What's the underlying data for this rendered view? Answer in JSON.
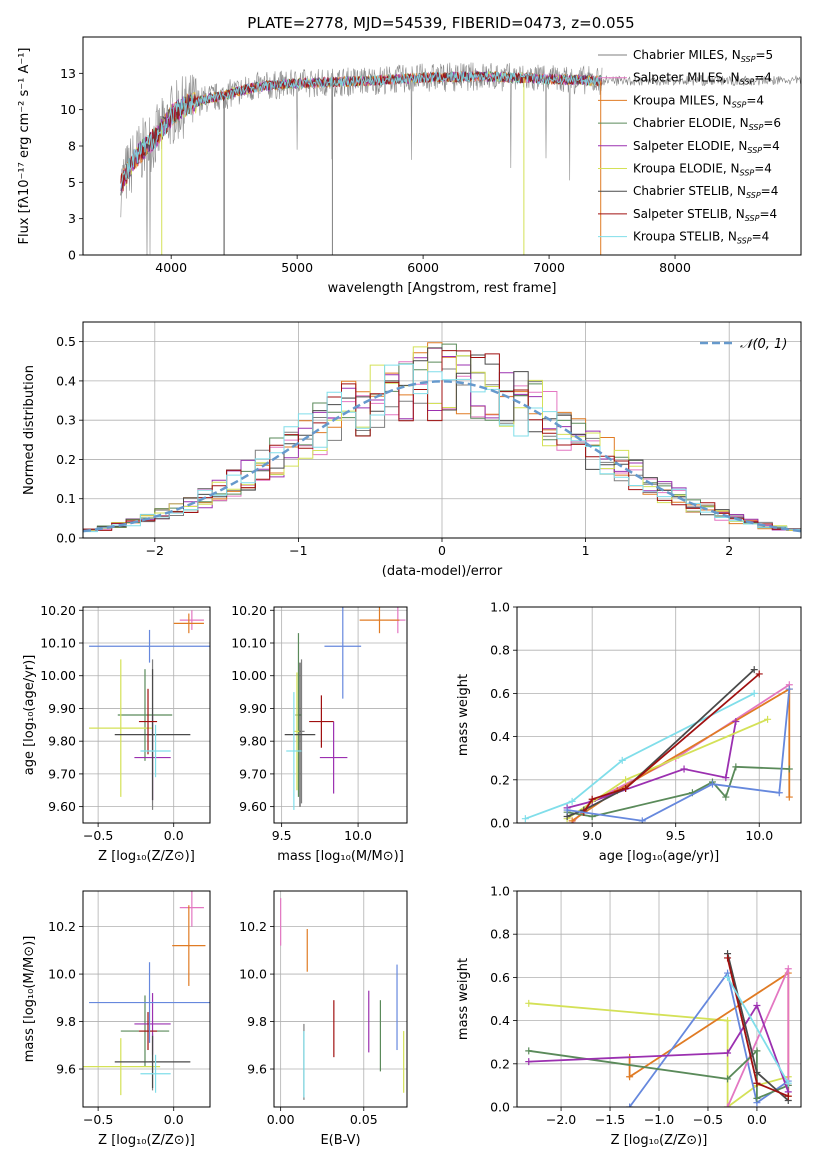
{
  "figure": {
    "title": "PLATE=2778, MJD=54539, FIBERID=0473, z=0.055"
  },
  "legend_entries": [
    {
      "label": "Chabrier MILES, N",
      "sub": "SSP",
      "tail": "=5",
      "color": "#7f7f7f"
    },
    {
      "label": "Salpeter MILES, N",
      "sub": "SSP",
      "tail": "=4",
      "color": "#e377c2"
    },
    {
      "label": "Kroupa MILES, N",
      "sub": "SSP",
      "tail": "=4",
      "color": "#e07b24"
    },
    {
      "label": "Chabrier ELODIE, N",
      "sub": "SSP",
      "tail": "=6",
      "color": "#5a8a5a"
    },
    {
      "label": "Salpeter ELODIE, N",
      "sub": "SSP",
      "tail": "=4",
      "color": "#9b30b0"
    },
    {
      "label": "Kroupa ELODIE, N",
      "sub": "SSP",
      "tail": "=4",
      "color": "#d4e157"
    },
    {
      "label": "Chabrier STELIB, N",
      "sub": "SSP",
      "tail": "=4",
      "color": "#4a4a4a"
    },
    {
      "label": "Salpeter STELIB, N",
      "sub": "SSP",
      "tail": "=4",
      "color": "#a01010"
    },
    {
      "label": "Kroupa STELIB, N",
      "sub": "SSP",
      "tail": "=4",
      "color": "#80deea"
    }
  ],
  "chart_data": [
    {
      "id": "spectrum",
      "type": "line",
      "xlabel": "wavelength [Angstrom, rest frame]",
      "ylabel": "Flux [fλ10⁻¹⁷ erg cm⁻² s⁻¹ A⁻¹]",
      "xlim": [
        3300,
        9000
      ],
      "ylim": [
        0,
        15
      ],
      "xticks": [
        4000,
        5000,
        6000,
        7000,
        8000
      ],
      "yticks": [
        0.0,
        2.5,
        5.0,
        7.5,
        10.0,
        12.5
      ],
      "continuum": {
        "x": [
          3600,
          3700,
          3800,
          3900,
          4000,
          4100,
          4200,
          4300,
          4400,
          4500,
          4700,
          5000,
          5300,
          5600,
          6000,
          6500,
          7000,
          7400
        ],
        "y": [
          4.8,
          6.5,
          7.5,
          8.3,
          9.6,
          10.2,
          10.5,
          10.8,
          10.9,
          11.2,
          11.6,
          11.8,
          11.9,
          12.0,
          12.2,
          12.3,
          12.1,
          12.0
        ]
      }
    },
    {
      "id": "residuals",
      "type": "line",
      "xlabel": "(data-model)/error",
      "ylabel": "Normed distribution",
      "xlim": [
        -2.5,
        2.5
      ],
      "ylim": [
        0,
        0.55
      ],
      "xticks": [
        -2,
        -1,
        0,
        1,
        2
      ],
      "yticks": [
        0.0,
        0.1,
        0.2,
        0.3,
        0.4,
        0.5
      ],
      "legend": "𝒩(0, 1)",
      "legend_position": "top-right",
      "gaussian": {
        "mean": 0,
        "sigma": 1
      },
      "hist_bin_width": 0.1
    },
    {
      "id": "age-vs-Z",
      "type": "scatter",
      "xlabel": "Z [log₁₀(Z/Z⊙)]",
      "ylabel": "age  [log₁₀(age/yr)]",
      "xlim": [
        -0.6,
        0.24
      ],
      "ylim": [
        9.55,
        10.21
      ],
      "xticks": [
        -0.5,
        0.0
      ],
      "yticks": [
        9.6,
        9.7,
        9.8,
        9.9,
        10.0,
        10.1,
        10.2
      ],
      "points": [
        {
          "x": -0.14,
          "y": 9.82,
          "xerr": 0.03,
          "yerr": 0.23,
          "color": "#7f7f7f"
        },
        {
          "x": 0.12,
          "y": 10.17,
          "xerr": 0.08,
          "yerr": 0.03,
          "color": "#e377c2"
        },
        {
          "x": 0.1,
          "y": 10.16,
          "xerr": 0.1,
          "yerr": 0.03,
          "color": "#e07b24"
        },
        {
          "x": -0.19,
          "y": 9.88,
          "xerr": 0.18,
          "yerr": 0.14,
          "color": "#5a8a5a"
        },
        {
          "x": -0.14,
          "y": 9.75,
          "xerr": 0.12,
          "yerr": 0.13,
          "color": "#9b30b0"
        },
        {
          "x": -0.35,
          "y": 9.84,
          "xerr": 0.21,
          "yerr": 0.21,
          "color": "#d4e157"
        },
        {
          "x": -0.14,
          "y": 9.82,
          "xerr": 0.25,
          "yerr": 0.2,
          "color": "#4a4a4a"
        },
        {
          "x": -0.17,
          "y": 9.86,
          "xerr": 0.06,
          "yerr": 0.1,
          "color": "#a01010"
        },
        {
          "x": -0.12,
          "y": 9.77,
          "xerr": 0.1,
          "yerr": 0.08,
          "color": "#80deea"
        },
        {
          "x": -0.16,
          "y": 10.09,
          "xerr": 0.4,
          "yerr": 0.05,
          "color": "#6688dd"
        }
      ]
    },
    {
      "id": "age-vs-mass",
      "type": "scatter",
      "xlabel": "mass [log₁₀(M/M⊙)]",
      "ylabel": "",
      "xlim": [
        9.45,
        10.32
      ],
      "ylim": [
        9.55,
        10.21
      ],
      "xticks": [
        9.5,
        10.0
      ],
      "yticks": [
        9.6,
        9.7,
        9.8,
        9.9,
        10.0,
        10.1,
        10.2
      ],
      "points": [
        {
          "x": 9.63,
          "y": 9.83,
          "xerr": 0.02,
          "yerr": 0.22,
          "color": "#7f7f7f"
        },
        {
          "x": 10.26,
          "y": 10.17,
          "xerr": 0.05,
          "yerr": 0.04,
          "color": "#e377c2"
        },
        {
          "x": 10.14,
          "y": 10.17,
          "xerr": 0.13,
          "yerr": 0.04,
          "color": "#e07b24"
        },
        {
          "x": 9.61,
          "y": 9.88,
          "xerr": 0.02,
          "yerr": 0.25,
          "color": "#5a8a5a"
        },
        {
          "x": 9.84,
          "y": 9.75,
          "xerr": 0.09,
          "yerr": 0.11,
          "color": "#9b30b0"
        },
        {
          "x": 9.6,
          "y": 9.83,
          "xerr": 0.02,
          "yerr": 0.18,
          "color": "#d4e157"
        },
        {
          "x": 9.62,
          "y": 9.82,
          "xerr": 0.1,
          "yerr": 0.22,
          "color": "#4a4a4a"
        },
        {
          "x": 9.76,
          "y": 9.86,
          "xerr": 0.08,
          "yerr": 0.08,
          "color": "#a01010"
        },
        {
          "x": 9.58,
          "y": 9.77,
          "xerr": 0.05,
          "yerr": 0.18,
          "color": "#80deea"
        },
        {
          "x": 9.9,
          "y": 10.09,
          "xerr": 0.12,
          "yerr": 0.16,
          "color": "#6688dd"
        }
      ]
    },
    {
      "id": "weight-vs-age",
      "type": "line",
      "xlabel": "age  [log₁₀(age/yr)]",
      "ylabel": "mass weight",
      "xlim": [
        8.55,
        10.25
      ],
      "ylim": [
        0,
        1.0
      ],
      "xticks": [
        9.0,
        9.5,
        10.0
      ],
      "yticks": [
        0.0,
        0.2,
        0.4,
        0.6,
        0.8,
        1.0
      ],
      "series": [
        {
          "color": "#80deea",
          "x": [
            8.6,
            8.88,
            9.18,
            9.97
          ],
          "y": [
            0.02,
            0.1,
            0.29,
            0.6
          ]
        },
        {
          "color": "#e377c2",
          "x": [
            8.88,
            9.0,
            9.5,
            10.18
          ],
          "y": [
            0.0,
            0.1,
            0.3,
            0.64
          ]
        },
        {
          "color": "#e07b24",
          "x": [
            8.88,
            9.15,
            10.18,
            10.18
          ],
          "y": [
            0.01,
            0.15,
            0.62,
            0.12
          ]
        },
        {
          "color": "#5a8a5a",
          "x": [
            8.85,
            9.0,
            9.6,
            9.72,
            9.8,
            9.86,
            10.18
          ],
          "y": [
            0.05,
            0.03,
            0.14,
            0.19,
            0.12,
            0.26,
            0.25
          ]
        },
        {
          "color": "#9b30b0",
          "x": [
            8.85,
            9.0,
            9.55,
            9.8,
            9.86
          ],
          "y": [
            0.07,
            0.1,
            0.25,
            0.21,
            0.47
          ]
        },
        {
          "color": "#d4e157",
          "x": [
            8.85,
            9.2,
            10.05
          ],
          "y": [
            0.02,
            0.2,
            0.48
          ]
        },
        {
          "color": "#4a4a4a",
          "x": [
            8.85,
            8.95,
            9.2,
            9.97
          ],
          "y": [
            0.03,
            0.06,
            0.16,
            0.71
          ]
        },
        {
          "color": "#a01010",
          "x": [
            8.95,
            9.0,
            9.2,
            10.0
          ],
          "y": [
            0.05,
            0.11,
            0.16,
            0.69
          ]
        },
        {
          "color": "#6688dd",
          "x": [
            8.85,
            9.3,
            9.72,
            10.12,
            10.18
          ],
          "y": [
            0.06,
            0.01,
            0.18,
            0.14,
            0.62
          ]
        }
      ]
    },
    {
      "id": "mass-vs-Z",
      "type": "scatter",
      "xlabel": "Z [log₁₀(Z/Z⊙)]",
      "ylabel": "mass [log₁₀(M/M⊙)]",
      "xlim": [
        -0.6,
        0.24
      ],
      "ylim": [
        9.44,
        10.35
      ],
      "xticks": [
        -0.5,
        0.0
      ],
      "yticks": [
        9.6,
        9.8,
        10.0,
        10.2
      ],
      "points": [
        {
          "x": -0.14,
          "y": 9.63,
          "xerr": 0.02,
          "yerr": 0.12,
          "color": "#7f7f7f"
        },
        {
          "x": 0.12,
          "y": 10.28,
          "xerr": 0.08,
          "yerr": 0.08,
          "color": "#e377c2"
        },
        {
          "x": 0.1,
          "y": 10.12,
          "xerr": 0.11,
          "yerr": 0.17,
          "color": "#e07b24"
        },
        {
          "x": -0.19,
          "y": 9.76,
          "xerr": 0.16,
          "yerr": 0.15,
          "color": "#5a8a5a"
        },
        {
          "x": -0.14,
          "y": 9.79,
          "xerr": 0.12,
          "yerr": 0.13,
          "color": "#9b30b0"
        },
        {
          "x": -0.35,
          "y": 9.61,
          "xerr": 0.26,
          "yerr": 0.12,
          "color": "#d4e157"
        },
        {
          "x": -0.14,
          "y": 9.63,
          "xerr": 0.25,
          "yerr": 0.11,
          "color": "#4a4a4a"
        },
        {
          "x": -0.17,
          "y": 9.76,
          "xerr": 0.06,
          "yerr": 0.08,
          "color": "#a01010"
        },
        {
          "x": -0.12,
          "y": 9.58,
          "xerr": 0.1,
          "yerr": 0.08,
          "color": "#80deea"
        },
        {
          "x": -0.16,
          "y": 9.88,
          "xerr": 0.4,
          "yerr": 0.17,
          "color": "#6688dd"
        }
      ]
    },
    {
      "id": "mass-vs-EBV",
      "type": "scatter",
      "xlabel": "E(B-V)",
      "ylabel": "",
      "xlim": [
        -0.004,
        0.076
      ],
      "ylim": [
        9.44,
        10.35
      ],
      "xticks": [
        0.0,
        0.05
      ],
      "yticks": [
        9.6,
        9.8,
        10.0,
        10.2
      ],
      "points": [
        {
          "x": 0.0,
          "y": 10.22,
          "yerr": 0.1,
          "color": "#e377c2"
        },
        {
          "x": 0.016,
          "y": 10.1,
          "yerr": 0.09,
          "color": "#e07b24"
        },
        {
          "x": 0.014,
          "y": 9.63,
          "yerr": 0.16,
          "color": "#7f7f7f"
        },
        {
          "x": 0.014,
          "y": 9.62,
          "yerr": 0.14,
          "color": "#80deea"
        },
        {
          "x": 0.032,
          "y": 9.77,
          "yerr": 0.12,
          "color": "#a01010"
        },
        {
          "x": 0.053,
          "y": 9.8,
          "yerr": 0.13,
          "color": "#9b30b0"
        },
        {
          "x": 0.06,
          "y": 9.74,
          "yerr": 0.15,
          "color": "#5a8a5a"
        },
        {
          "x": 0.07,
          "y": 9.86,
          "yerr": 0.18,
          "color": "#6688dd"
        },
        {
          "x": 0.074,
          "y": 9.63,
          "yerr": 0.13,
          "color": "#d4e157"
        }
      ]
    },
    {
      "id": "weight-vs-Z",
      "type": "line",
      "xlabel": "Z [log₁₀(Z/Z⊙)]",
      "ylabel": "mass weight",
      "xlim": [
        -2.45,
        0.45
      ],
      "ylim": [
        0,
        1.0
      ],
      "xticks": [
        -2.0,
        -1.5,
        -1.0,
        -0.5,
        0.0
      ],
      "yticks": [
        0.0,
        0.2,
        0.4,
        0.6,
        0.8,
        1.0
      ],
      "series": [
        {
          "color": "#d4e157",
          "x": [
            -2.33,
            -0.3,
            -0.3,
            0.0,
            0.32
          ],
          "y": [
            0.48,
            0.4,
            0.0,
            0.1,
            0.14
          ]
        },
        {
          "color": "#e07b24",
          "x": [
            -1.3,
            -1.3,
            0.32,
            0.32
          ],
          "y": [
            0.23,
            0.14,
            0.62,
            0.05
          ]
        },
        {
          "color": "#6688dd",
          "x": [
            -1.3,
            -0.3,
            0.0,
            0.32
          ],
          "y": [
            0.0,
            0.62,
            0.02,
            0.12
          ]
        },
        {
          "color": "#e377c2",
          "x": [
            -0.3,
            0.32,
            0.32
          ],
          "y": [
            0.0,
            0.64,
            0.1
          ]
        },
        {
          "color": "#5a8a5a",
          "x": [
            -2.33,
            -0.3,
            0.0,
            0.0,
            0.32
          ],
          "y": [
            0.26,
            0.13,
            0.26,
            0.04,
            0.1
          ]
        },
        {
          "color": "#9b30b0",
          "x": [
            -2.33,
            -0.3,
            0.0,
            0.32
          ],
          "y": [
            0.21,
            0.25,
            0.47,
            0.07
          ]
        },
        {
          "color": "#4a4a4a",
          "x": [
            -0.3,
            0.0,
            0.32
          ],
          "y": [
            0.71,
            0.16,
            0.03
          ]
        },
        {
          "color": "#a01010",
          "x": [
            -0.3,
            0.0,
            0.32
          ],
          "y": [
            0.69,
            0.11,
            0.05
          ]
        },
        {
          "color": "#80deea",
          "x": [
            -0.3,
            0.32
          ],
          "y": [
            0.6,
            0.11
          ]
        }
      ]
    }
  ]
}
